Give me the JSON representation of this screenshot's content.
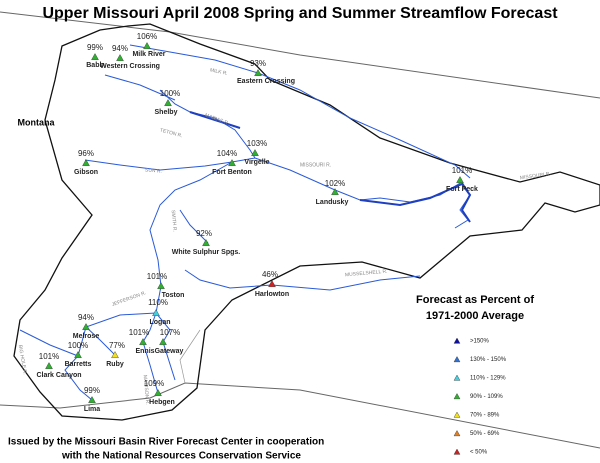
{
  "title": "Upper Missouri April 2008 Spring and Summer Streamflow Forecast",
  "state_label": "Montana",
  "legend": {
    "title": [
      "Forecast as Percent of",
      "1971-2000 Average"
    ],
    "items": [
      {
        "label": ">150%",
        "color": "#1010a0"
      },
      {
        "label": "130% - 150%",
        "color": "#3070d0"
      },
      {
        "label": "110% - 129%",
        "color": "#40d0e0"
      },
      {
        "label": "90% - 109%",
        "color": "#30b030"
      },
      {
        "label": "70% - 89%",
        "color": "#f0e020"
      },
      {
        "label": "50% - 69%",
        "color": "#e08020"
      },
      {
        "label": "< 50%",
        "color": "#d02020"
      }
    ]
  },
  "stations": [
    {
      "name": "Milk River",
      "value": 106,
      "value_label": "106%",
      "color": "#30b030"
    },
    {
      "name": "Western Crossing",
      "value": 94,
      "value_label": "94%",
      "color": "#30b030"
    },
    {
      "name": "Babb",
      "value": 99,
      "value_label": "99%",
      "color": "#30b030"
    },
    {
      "name": "Eastern Crossing",
      "value": 93,
      "value_label": "93%",
      "color": "#30b030"
    },
    {
      "name": "Shelby",
      "value": 100,
      "value_label": "100%",
      "color": "#30b030"
    },
    {
      "name": "Virgelle",
      "value": 103,
      "value_label": "103%",
      "color": "#30b030"
    },
    {
      "name": "Fort Benton",
      "value": 104,
      "value_label": "104%",
      "color": "#30b030"
    },
    {
      "name": "Gibson",
      "value": 96,
      "value_label": "96%",
      "color": "#30b030"
    },
    {
      "name": "Landusky",
      "value": 102,
      "value_label": "102%",
      "color": "#30b030"
    },
    {
      "name": "Fort Peck",
      "value": 101,
      "value_label": "101%",
      "color": "#30b030"
    },
    {
      "name": "White Sulphur Spgs.",
      "value": 92,
      "value_label": "92%",
      "color": "#30b030"
    },
    {
      "name": "Harlowton",
      "value": 46,
      "value_label": "46%",
      "color": "#d02020"
    },
    {
      "name": "Toston",
      "value": 101,
      "value_label": "101%",
      "color": "#30b030"
    },
    {
      "name": "Logan",
      "value": 110,
      "value_label": "110%",
      "color": "#40d0e0"
    },
    {
      "name": "Melrose",
      "value": 94,
      "value_label": "94%",
      "color": "#30b030"
    },
    {
      "name": "Barretts",
      "value": 100,
      "value_label": "100%",
      "color": "#30b030"
    },
    {
      "name": "Clark Canyon",
      "value": 101,
      "value_label": "101%",
      "color": "#30b030"
    },
    {
      "name": "Ruby",
      "value": 77,
      "value_label": "77%",
      "color": "#f0e020"
    },
    {
      "name": "Ennis",
      "value": 101,
      "value_label": "101%",
      "color": "#30b030"
    },
    {
      "name": "Gateway",
      "value": 107,
      "value_label": "107%",
      "color": "#30b030"
    },
    {
      "name": "Hebgen",
      "value": 109,
      "value_label": "109%",
      "color": "#30b030"
    },
    {
      "name": "Lima",
      "value": 99,
      "value_label": "99%",
      "color": "#30b030"
    }
  ],
  "rivers": [
    "MILK R.",
    "MARIAS R.",
    "TETON R.",
    "SUN R.",
    "MISSOURI R.",
    "MISSOURI R.",
    "SMITH R.",
    "MUSSELSHELL R.",
    "JEFFERSON R.",
    "BIG HOLE R.",
    "MADISON R."
  ],
  "footer": [
    "Issued by the Missouri Basin River Forecast Center in cooperation",
    "with the National Resources Conservation Service"
  ]
}
